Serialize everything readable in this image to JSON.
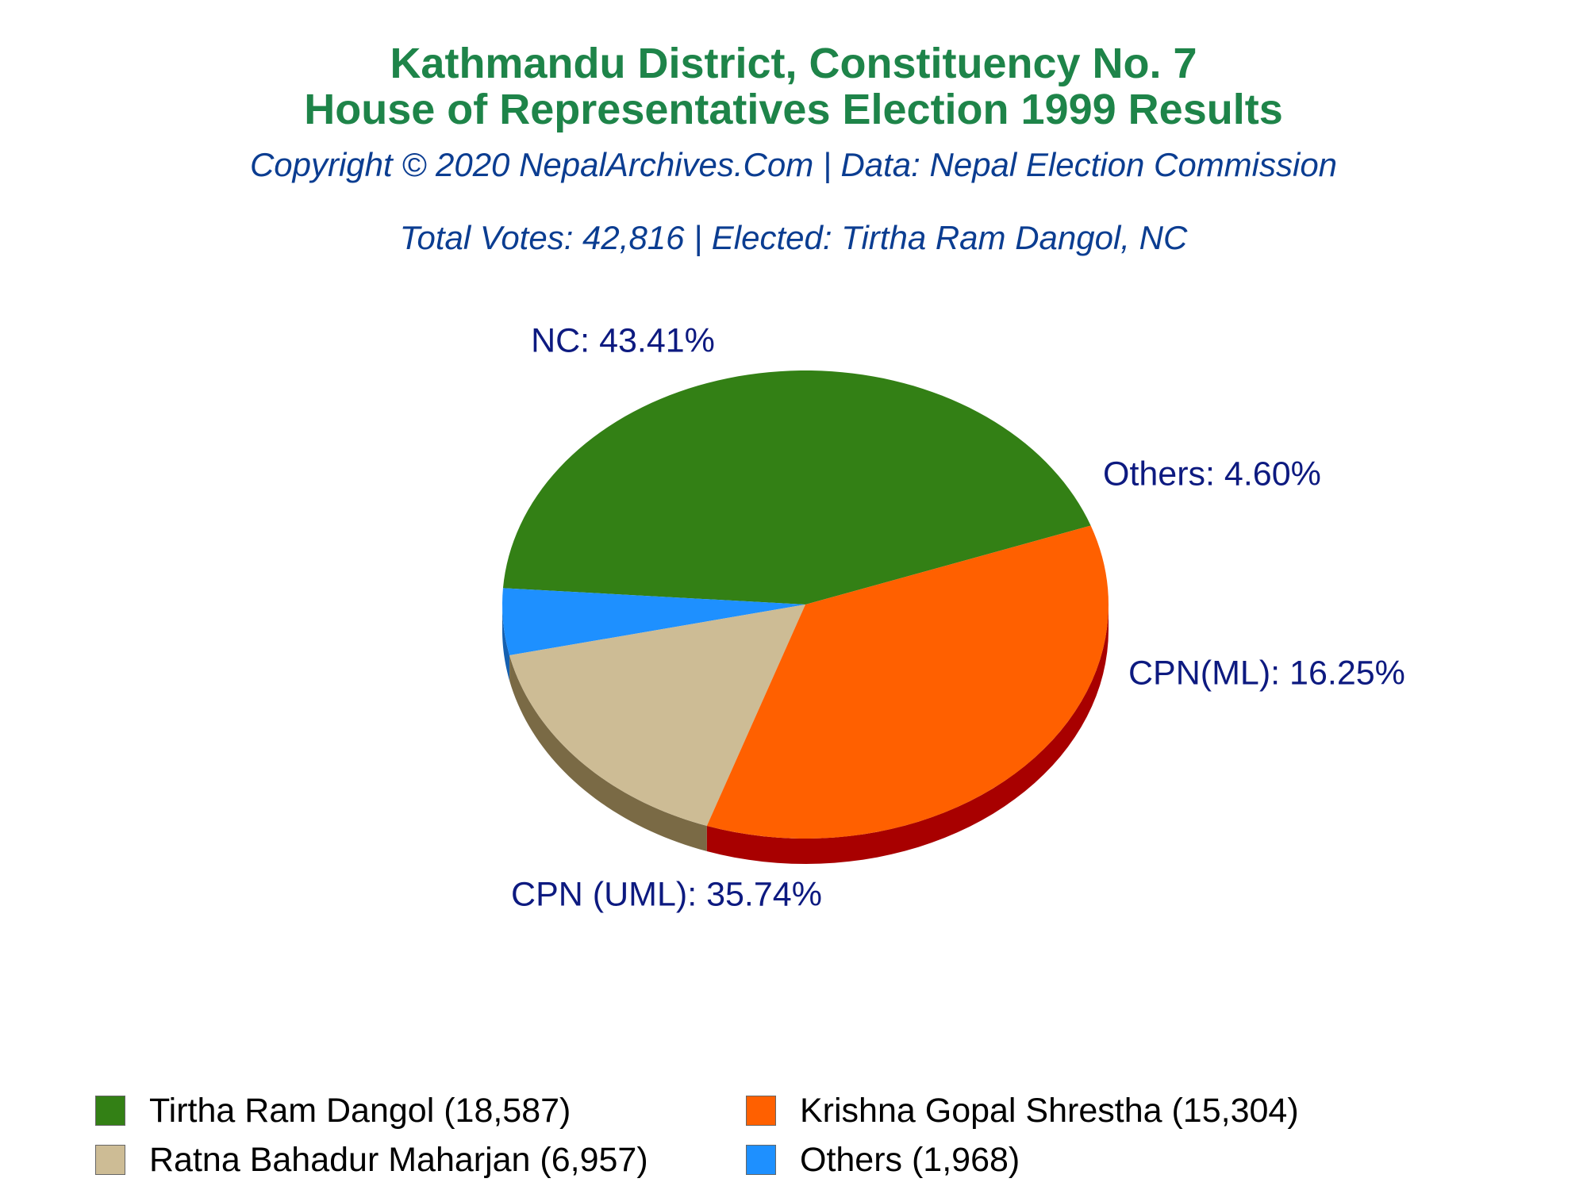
{
  "header": {
    "title_line1": "Kathmandu District, Constituency No. 7",
    "title_line2": "House of Representatives Election 1999 Results",
    "copyright": "Copyright © 2020 NepalArchives.Com | Data: Nepal Election Commission",
    "summary": "Total Votes: 42,816 | Elected: Tirtha Ram Dangol, NC"
  },
  "colors": {
    "title": "#1e8449",
    "subtitle": "#0b3d91",
    "slice_label": "#0d1a80"
  },
  "chart_data": {
    "type": "pie",
    "style": "3d-tilted",
    "total_votes": 42816,
    "slices": [
      {
        "party": "NC",
        "label": "NC: 43.41%",
        "percent": 43.41,
        "votes": 18587,
        "candidate": "Tirtha Ram Dangol",
        "legend": "Tirtha Ram Dangol (18,587)",
        "color": "#338015",
        "side_color": "#1f5a0c"
      },
      {
        "party": "Others",
        "label": "Others: 4.60%",
        "percent": 4.6,
        "votes": 1968,
        "candidate": "Others",
        "legend": "Others (1,968)",
        "color": "#1e90ff",
        "side_color": "#1560b0"
      },
      {
        "party": "CPN(ML)",
        "label": "CPN(ML): 16.25%",
        "percent": 16.25,
        "votes": 6957,
        "candidate": "Ratna Bahadur Maharjan",
        "legend": "Ratna Bahadur Maharjan (6,957)",
        "color": "#cdbc95",
        "side_color": "#7a6a45"
      },
      {
        "party": "CPN (UML)",
        "label": "CPN (UML): 35.74%",
        "percent": 35.74,
        "votes": 15304,
        "candidate": "Krishna Gopal Shrestha",
        "legend": "Krishna Gopal Shrestha (15,304)",
        "color": "#ff6000",
        "side_color": "#a80000"
      }
    ],
    "legend_order": [
      0,
      3,
      2,
      1
    ],
    "legend_placement": "bottom"
  }
}
